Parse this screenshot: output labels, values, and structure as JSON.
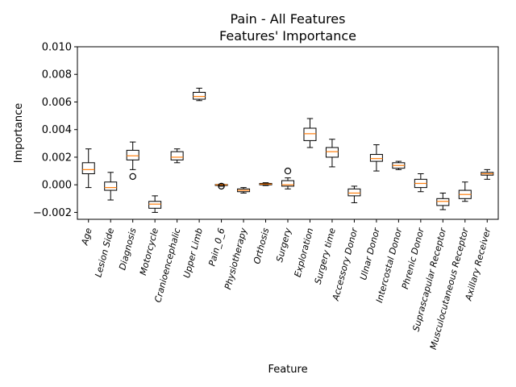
{
  "chart_data": {
    "type": "box",
    "title_line1": "Pain - All Features",
    "title_line2": "Features' Importance",
    "xlabel": "Feature",
    "ylabel": "Importance",
    "ylim": [
      -0.0025,
      0.01
    ],
    "yticks": [
      -0.002,
      0.0,
      0.002,
      0.004,
      0.006,
      0.008,
      0.01
    ],
    "ytick_labels": [
      "−0.002",
      "0.000",
      "0.002",
      "0.004",
      "0.006",
      "0.008",
      "0.010"
    ],
    "grid": false,
    "colors": {
      "box": "#000000",
      "median": "#ff7f0e",
      "flier": "#000000"
    },
    "boxes": [
      {
        "label": "Age",
        "whislo": -0.0002,
        "q1": 0.0008,
        "med": 0.0011,
        "q3": 0.0016,
        "whishi": 0.0026,
        "fliers": []
      },
      {
        "label": "Lesion Side",
        "whislo": -0.0011,
        "q1": -0.0004,
        "med": -0.0002,
        "q3": 0.0002,
        "whishi": 0.0009,
        "fliers": []
      },
      {
        "label": "Diagnosis",
        "whislo": 0.0011,
        "q1": 0.0018,
        "med": 0.0021,
        "q3": 0.0025,
        "whishi": 0.0031,
        "fliers": [
          0.0006
        ]
      },
      {
        "label": "Motorcycle",
        "whislo": -0.002,
        "q1": -0.0017,
        "med": -0.0014,
        "q3": -0.0012,
        "whishi": -0.0008,
        "fliers": []
      },
      {
        "label": "Cranioencephalic",
        "whislo": 0.0016,
        "q1": 0.0018,
        "med": 0.002,
        "q3": 0.0024,
        "whishi": 0.0026,
        "fliers": []
      },
      {
        "label": "Upper Limb",
        "whislo": 0.0061,
        "q1": 0.0062,
        "med": 0.0064,
        "q3": 0.0067,
        "whishi": 0.007,
        "fliers": []
      },
      {
        "label": "Pain_0_6",
        "whislo": -0.0001,
        "q1": -5e-05,
        "med": 0.0,
        "q3": 2e-05,
        "whishi": 5e-05,
        "fliers": [
          -0.0001
        ]
      },
      {
        "label": "Physiotherapy",
        "whislo": -0.0006,
        "q1": -0.0005,
        "med": -0.0004,
        "q3": -0.0003,
        "whishi": -0.0002,
        "fliers": []
      },
      {
        "label": "Orthosis",
        "whislo": -5e-05,
        "q1": 0.0,
        "med": 5e-05,
        "q3": 0.0001,
        "whishi": 0.00015,
        "fliers": []
      },
      {
        "label": "Surgery",
        "whislo": -0.0003,
        "q1": -0.0001,
        "med": 0.0,
        "q3": 0.0003,
        "whishi": 0.0005,
        "fliers": [
          0.001
        ]
      },
      {
        "label": "Exploration",
        "whislo": 0.0027,
        "q1": 0.0032,
        "med": 0.0037,
        "q3": 0.0041,
        "whishi": 0.0048,
        "fliers": []
      },
      {
        "label": "Surgery time",
        "whislo": 0.0013,
        "q1": 0.002,
        "med": 0.0024,
        "q3": 0.0027,
        "whishi": 0.0033,
        "fliers": []
      },
      {
        "label": "Accessory Donor",
        "whislo": -0.0013,
        "q1": -0.0008,
        "med": -0.0006,
        "q3": -0.0003,
        "whishi": -0.0001,
        "fliers": []
      },
      {
        "label": "Ulnar Donor",
        "whislo": 0.001,
        "q1": 0.0017,
        "med": 0.0019,
        "q3": 0.0022,
        "whishi": 0.0029,
        "fliers": []
      },
      {
        "label": "Intercostal Donor",
        "whislo": 0.0011,
        "q1": 0.0012,
        "med": 0.0014,
        "q3": 0.0016,
        "whishi": 0.0017,
        "fliers": []
      },
      {
        "label": "Phrenic Donor",
        "whislo": -0.0005,
        "q1": -0.0002,
        "med": 0.0001,
        "q3": 0.0004,
        "whishi": 0.0008,
        "fliers": []
      },
      {
        "label": "Suprascapular Receptor",
        "whislo": -0.0018,
        "q1": -0.0015,
        "med": -0.0012,
        "q3": -0.001,
        "whishi": -0.0006,
        "fliers": []
      },
      {
        "label": "Musculocutaneous Receptor",
        "whislo": -0.0012,
        "q1": -0.001,
        "med": -0.0007,
        "q3": -0.0004,
        "whishi": 0.0002,
        "fliers": []
      },
      {
        "label": "Axillary Receiver",
        "whislo": 0.0004,
        "q1": 0.0007,
        "med": 0.0008,
        "q3": 0.0009,
        "whishi": 0.0011,
        "fliers": []
      }
    ]
  }
}
